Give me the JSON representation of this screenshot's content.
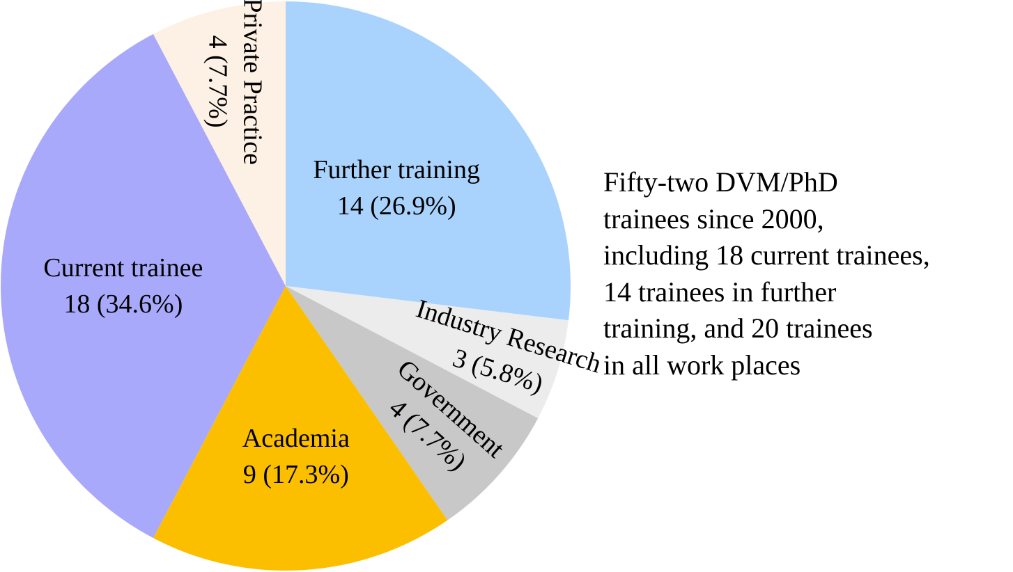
{
  "chart_data": {
    "type": "pie",
    "title": "",
    "slices": [
      {
        "label": "Further training",
        "value": 14,
        "percent_label": "14 (26.9%)",
        "color": "#a9d3fd"
      },
      {
        "label": "Industry Research",
        "value": 3,
        "percent_label": "3 (5.8%)",
        "color": "#ececec"
      },
      {
        "label": "Government",
        "value": 4,
        "percent_label": "4 (7.7%)",
        "color": "#c8c8c8"
      },
      {
        "label": "Academia",
        "value": 9,
        "percent_label": "9 (17.3%)",
        "color": "#fcbf00"
      },
      {
        "label": "Current trainee",
        "value": 18,
        "percent_label": "18 (34.6%)",
        "color": "#a9a9fb"
      },
      {
        "label": "Private Practice",
        "value": 4,
        "percent_label": "4 (7.7%)",
        "color": "#fdf1e5"
      }
    ],
    "start": "12 o'clock",
    "direction": "clockwise",
    "legend": "none",
    "annotation": [
      "Fifty-two DVM/PhD",
      "trainees since 2000,",
      "including 18 current trainees,",
      "14 trainees in further",
      "training, and 20 trainees",
      "in all work places"
    ]
  }
}
